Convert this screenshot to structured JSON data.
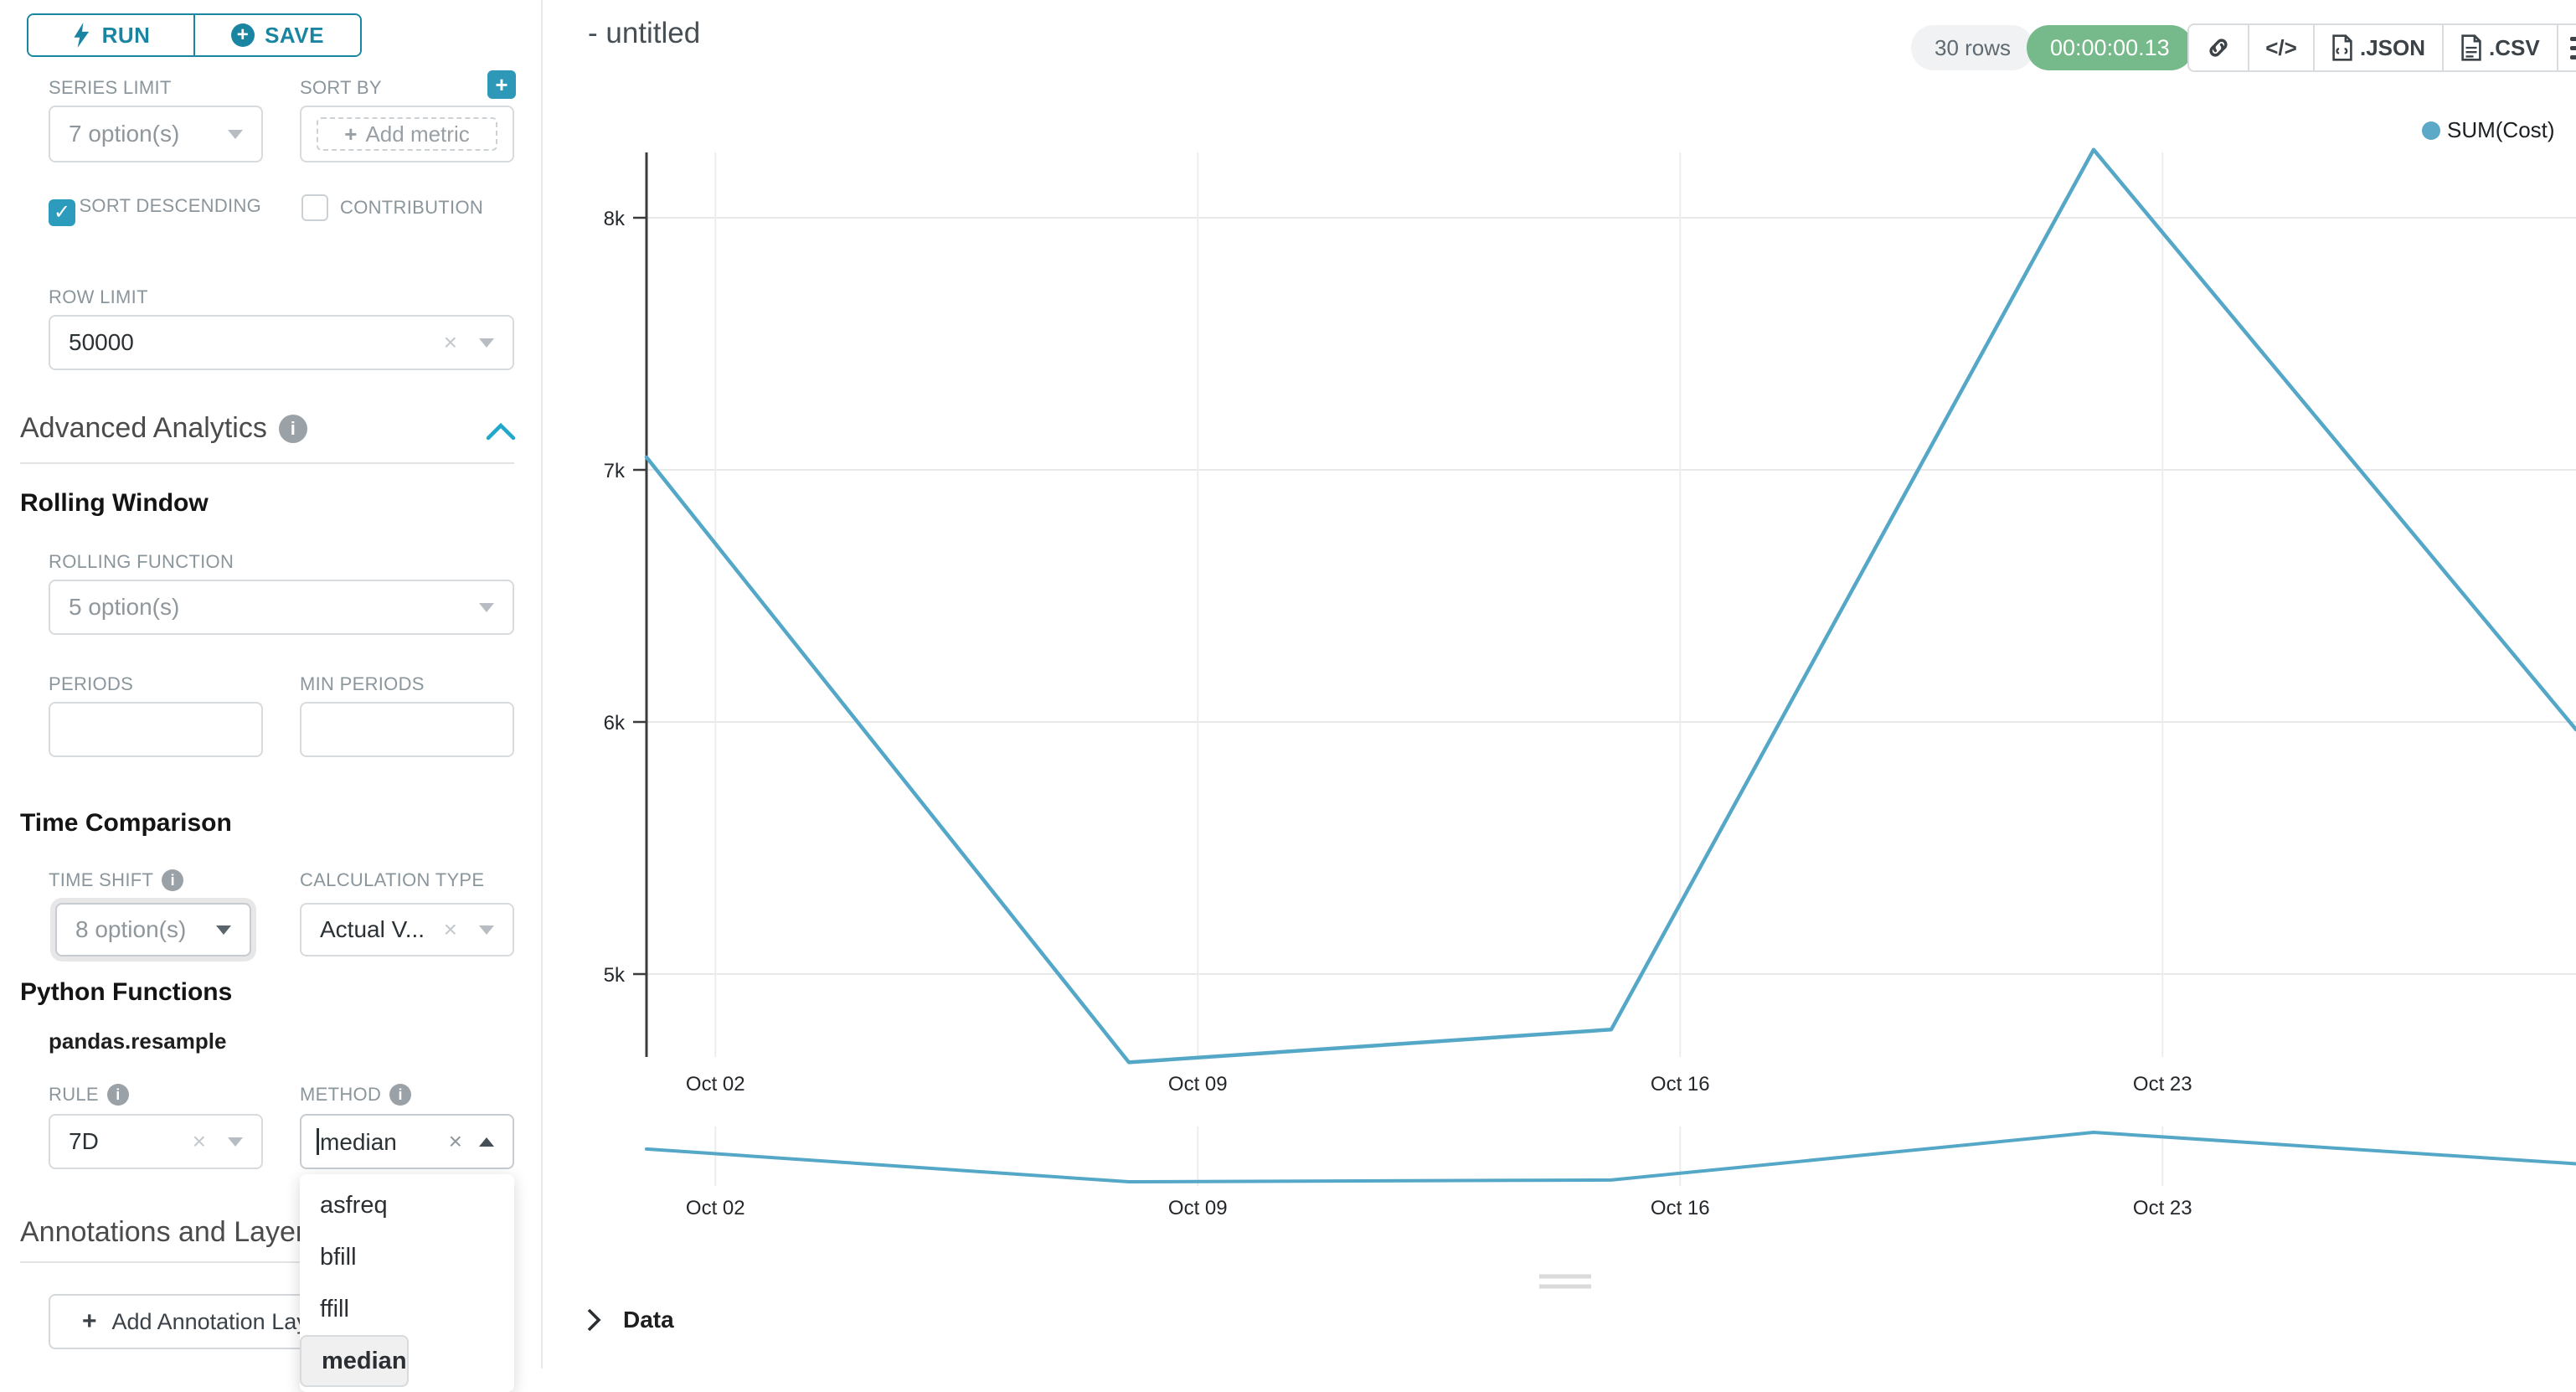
{
  "app": {
    "accent": "#20a7c9",
    "accent_dark": "#1a85a0",
    "success_green": "#76b98a"
  },
  "sidebar": {
    "run_label": "RUN",
    "save_label": "SAVE",
    "series_limit": {
      "label": "SERIES LIMIT",
      "value": "7 option(s)"
    },
    "sort_by": {
      "label": "SORT BY",
      "placeholder": "Add metric"
    },
    "sort_descending": {
      "label": "SORT DESCENDING",
      "checked": true
    },
    "contribution": {
      "label": "CONTRIBUTION",
      "checked": false
    },
    "row_limit": {
      "label": "ROW LIMIT",
      "value": "50000"
    },
    "advanced_analytics": {
      "title": "Advanced Analytics"
    },
    "rolling_window": {
      "title": "Rolling Window",
      "rolling_function": {
        "label": "ROLLING FUNCTION",
        "value": "5 option(s)"
      },
      "periods": {
        "label": "PERIODS",
        "value": ""
      },
      "min_periods": {
        "label": "MIN PERIODS",
        "value": ""
      }
    },
    "time_comparison": {
      "title": "Time Comparison",
      "time_shift": {
        "label": "TIME SHIFT",
        "value": "8 option(s)"
      },
      "calculation_type": {
        "label": "CALCULATION TYPE",
        "value": "Actual V..."
      }
    },
    "python_functions": {
      "title": "Python Functions",
      "subtitle": "pandas.resample",
      "rule": {
        "label": "RULE",
        "value": "7D"
      },
      "method": {
        "label": "METHOD",
        "value": "median",
        "options": [
          "asfreq",
          "bfill",
          "ffill",
          "median"
        ],
        "selected_option": "median"
      }
    },
    "annotations": {
      "title": "Annotations and Layers",
      "add_button": "Add Annotation Layer"
    }
  },
  "header": {
    "title": "- untitled",
    "rows_badge": "30 rows",
    "timer_badge": "00:00:00.13",
    "export_json_label": ".JSON",
    "export_csv_label": ".CSV"
  },
  "chart_data": {
    "type": "line",
    "series": [
      {
        "name": "SUM(Cost)",
        "color": "#55a7c7",
        "points": [
          {
            "date": "Oct 01",
            "day": 0,
            "value": 7050
          },
          {
            "date": "Oct 08",
            "day": 7,
            "value": 4650
          },
          {
            "date": "Oct 15",
            "day": 14,
            "value": 4780
          },
          {
            "date": "Oct 22",
            "day": 21,
            "value": 8270
          },
          {
            "date": "Oct 29",
            "day": 28,
            "value": 5970
          }
        ]
      }
    ],
    "x_ticks": [
      {
        "label": "Oct 02",
        "day": 1
      },
      {
        "label": "Oct 09",
        "day": 8
      },
      {
        "label": "Oct 16",
        "day": 15
      },
      {
        "label": "Oct 23",
        "day": 22
      }
    ],
    "y_ticks": [
      {
        "label": "8k",
        "value": 8000
      },
      {
        "label": "7k",
        "value": 7000
      },
      {
        "label": "6k",
        "value": 6000
      },
      {
        "label": "5k",
        "value": 5000
      }
    ],
    "ylim": [
      4600,
      8300
    ],
    "grid": true,
    "legend": {
      "label": "SUM(Cost)",
      "dot_color": "#5ba8c7",
      "position": "top-right"
    },
    "range_selector": {
      "present": true,
      "x_tick_labels": [
        "Oct 02",
        "Oct 09",
        "Oct 16",
        "Oct 23"
      ]
    }
  },
  "data_panel": {
    "label": "Data"
  }
}
